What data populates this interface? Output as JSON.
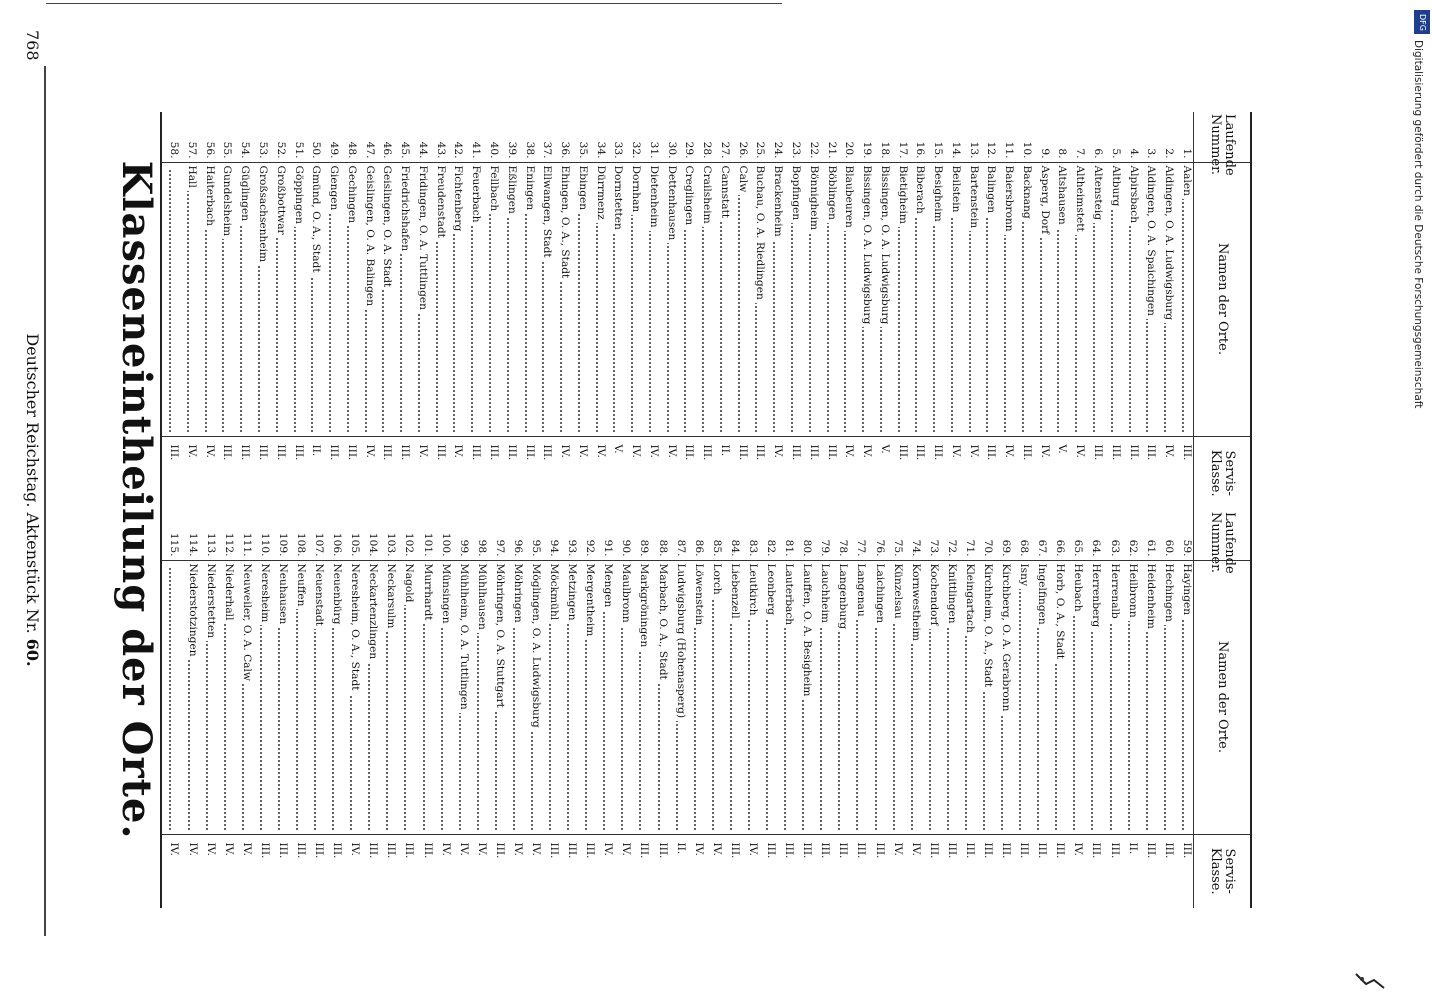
{
  "header": {
    "page_number": "768",
    "running_head": "Deutscher Reichstag. Aktenstück Nr.",
    "doc_number": "60."
  },
  "title": "Klasseneintheilung der Orte.",
  "columns": {
    "number": "Laufende Nummer.",
    "place": "Namen der Orte.",
    "class": "Servis-Klasse."
  },
  "left_rows": [
    [
      "1.",
      "Aalen",
      "III."
    ],
    [
      "2.",
      "Aldingen, O. A. Ludwigsburg",
      "IV."
    ],
    [
      "3.",
      "Aldingen, O. A. Spaichingen",
      "III."
    ],
    [
      "4.",
      "Alpirsbach",
      "III."
    ],
    [
      "5.",
      "Altburg",
      "III."
    ],
    [
      "6.",
      "Altensteig",
      "III."
    ],
    [
      "7.",
      "Altheimstett",
      "IV."
    ],
    [
      "8.",
      "Altshausen",
      "V."
    ],
    [
      "9.",
      "Asperg, Dorf",
      "IV."
    ],
    [
      "10.",
      "Backnang",
      "III."
    ],
    [
      "11.",
      "Baiersbronn",
      "IV."
    ],
    [
      "12.",
      "Balingen",
      "III."
    ],
    [
      "13.",
      "Bartenstein",
      "IV."
    ],
    [
      "14.",
      "Beilstein",
      "IV."
    ],
    [
      "15.",
      "Besigheim",
      "III."
    ],
    [
      "16.",
      "Biberach",
      "III."
    ],
    [
      "17.",
      "Bietigheim",
      "III."
    ],
    [
      "18.",
      "Bissingen, O. A. Ludwigsburg",
      "V."
    ],
    [
      "19.",
      "Bissingen, O. A. Ludwigsburg",
      "IV."
    ],
    [
      "20.",
      "Blaubeuren",
      "IV."
    ],
    [
      "21.",
      "Böblingen",
      "III."
    ],
    [
      "22.",
      "Bönnigheim",
      "III."
    ],
    [
      "23.",
      "Bopfingen",
      "III."
    ],
    [
      "24.",
      "Brackenheim",
      "IV."
    ],
    [
      "25.",
      "Buchau, O. A. Riedlingen",
      "III."
    ],
    [
      "26.",
      "Calw",
      "III."
    ],
    [
      "27.",
      "Cannstatt",
      "II."
    ],
    [
      "28.",
      "Crailsheim",
      "III."
    ],
    [
      "29.",
      "Creglingen",
      "III."
    ],
    [
      "30.",
      "Dettenhausen",
      "IV."
    ],
    [
      "31.",
      "Dietenheim",
      "IV."
    ],
    [
      "32.",
      "Dornhan",
      "IV."
    ],
    [
      "33.",
      "Dornstetten",
      "V."
    ],
    [
      "34.",
      "Dürrmenz",
      "IV."
    ],
    [
      "35.",
      "Ebingen",
      "IV."
    ],
    [
      "36.",
      "Ehingen, O. A., Stadt",
      "IV."
    ],
    [
      "37.",
      "Ellwangen, Stadt",
      "III."
    ],
    [
      "38.",
      "Eningen",
      "III."
    ],
    [
      "39.",
      "Eßlingen",
      "III."
    ],
    [
      "40.",
      "Fellbach",
      "III."
    ],
    [
      "41.",
      "Feuerbach",
      "III."
    ],
    [
      "42.",
      "Fichtenberg",
      "IV."
    ],
    [
      "43.",
      "Freudenstadt",
      "III."
    ],
    [
      "44.",
      "Fridingen, O. A. Tuttlingen",
      "IV."
    ],
    [
      "45.",
      "Friedrichshafen",
      "III."
    ],
    [
      "46.",
      "Geislingen, O. A. Stadt",
      "III."
    ],
    [
      "47.",
      "Geislingen, O. A. Balingen",
      "IV."
    ],
    [
      "48.",
      "Gechingen",
      "III."
    ],
    [
      "49.",
      "Giengen",
      "III."
    ],
    [
      "50.",
      "Gmünd, O. A., Stadt",
      "II."
    ],
    [
      "51.",
      "Göppingen",
      "III."
    ],
    [
      "52.",
      "Großbottwar",
      "III."
    ],
    [
      "53.",
      "Großsachsenheim",
      "III."
    ],
    [
      "54.",
      "Güglingen",
      "III."
    ],
    [
      "55.",
      "Gundelsheim",
      "III."
    ],
    [
      "56.",
      "Haiterbach",
      "IV."
    ],
    [
      "57.",
      "Hall",
      "IV."
    ],
    [
      "58.",
      "",
      "III."
    ]
  ],
  "right_rows": [
    [
      "59.",
      "Hayingen",
      "III."
    ],
    [
      "60.",
      "Hechingen",
      "III."
    ],
    [
      "61.",
      "Heidenheim",
      "III."
    ],
    [
      "62.",
      "Heilbronn",
      "II."
    ],
    [
      "63.",
      "Herrenalb",
      "III."
    ],
    [
      "64.",
      "Herrenberg",
      "III."
    ],
    [
      "65.",
      "Heubach",
      "IV."
    ],
    [
      "66.",
      "Horb, O. A., Stadt",
      "III."
    ],
    [
      "67.",
      "Ingelfingen",
      "III."
    ],
    [
      "68.",
      "Isny",
      "III."
    ],
    [
      "69.",
      "Kirchberg, O. A. Gerabronn",
      "III."
    ],
    [
      "70.",
      "Kirchheim, O. A., Stadt",
      "III."
    ],
    [
      "71.",
      "Kleingartach",
      "III."
    ],
    [
      "72.",
      "Knittlingen",
      "III."
    ],
    [
      "73.",
      "Kochendorf",
      "III."
    ],
    [
      "74.",
      "Kornwestheim",
      "IV."
    ],
    [
      "75.",
      "Künzelsau",
      "IV."
    ],
    [
      "76.",
      "Laichingen",
      "III."
    ],
    [
      "77.",
      "Langenau",
      "III."
    ],
    [
      "78.",
      "Langenburg",
      "III."
    ],
    [
      "79.",
      "Lauchheim",
      "III."
    ],
    [
      "80.",
      "Lauffen, O. A. Besigheim",
      "III."
    ],
    [
      "81.",
      "Lauterbach",
      "III."
    ],
    [
      "82.",
      "Leonberg",
      "III."
    ],
    [
      "83.",
      "Leutkirch",
      "IV."
    ],
    [
      "84.",
      "Liebenzell",
      "III."
    ],
    [
      "85.",
      "Lorch",
      "IV."
    ],
    [
      "86.",
      "Löwenstein",
      "IV."
    ],
    [
      "87.",
      "Ludwigsburg (Hohenasperg)",
      "II."
    ],
    [
      "88.",
      "Marbach, O. A., Stadt",
      "III."
    ],
    [
      "89.",
      "Markgröningen",
      "III."
    ],
    [
      "90.",
      "Maulbronn",
      "IV."
    ],
    [
      "91.",
      "Mengen",
      "IV."
    ],
    [
      "92.",
      "Mergentheim",
      "III."
    ],
    [
      "93.",
      "Metzingen",
      "III."
    ],
    [
      "94.",
      "Möckmühl",
      "III."
    ],
    [
      "95.",
      "Möglingen, O. A. Ludwigsburg",
      "IV."
    ],
    [
      "96.",
      "Möhringen",
      "IV."
    ],
    [
      "97.",
      "Möhringen, O. A. Stuttgart",
      "III."
    ],
    [
      "98.",
      "Mühlhausen",
      "IV."
    ],
    [
      "99.",
      "Mühlheim, O. A. Tuttlingen",
      "IV."
    ],
    [
      "100.",
      "Münsingen",
      "IV."
    ],
    [
      "101.",
      "Murrhardt",
      "III."
    ],
    [
      "102.",
      "Nagold",
      "III."
    ],
    [
      "103.",
      "Neckarsulm",
      "III."
    ],
    [
      "104.",
      "Neckartenzlingen",
      "III."
    ],
    [
      "105.",
      "Neresheim, O. A., Stadt",
      "IV."
    ],
    [
      "106.",
      "Neuenbürg",
      "III."
    ],
    [
      "107.",
      "Neuenstadt",
      "III."
    ],
    [
      "108.",
      "Neuffen",
      "III."
    ],
    [
      "109.",
      "Neuhausen",
      "III."
    ],
    [
      "110.",
      "Neresheim",
      "III."
    ],
    [
      "111.",
      "Neuweiler, O. A. Calw",
      "IV."
    ],
    [
      "112.",
      "Niederhall",
      "IV."
    ],
    [
      "113.",
      "Niederstetten",
      "IV."
    ],
    [
      "114.",
      "Niederstotzingen",
      "IV."
    ],
    [
      "115.",
      "",
      "IV."
    ]
  ],
  "digitization_note": "Digitalisierung gefördert durch die Deutsche Forschungsgemeinschaft",
  "dfg_logo": "DFG"
}
